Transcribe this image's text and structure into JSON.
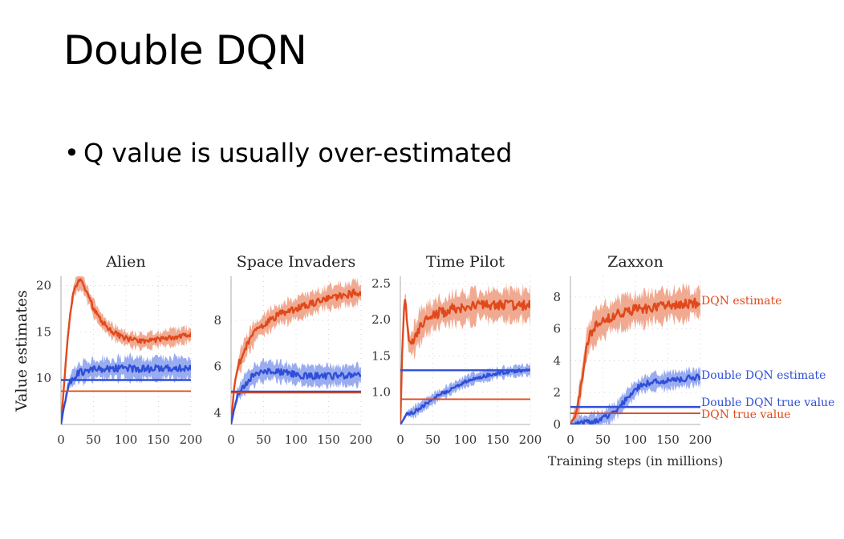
{
  "slide": {
    "title": "Double DQN",
    "bullet": "Q value is usually over-estimated",
    "bullet_symbol": "•"
  },
  "figure": {
    "ylabel": "Value estimates",
    "xlabel": "Training steps (in millions)",
    "x_ticks": [
      "0",
      "50",
      "100",
      "150",
      "200"
    ],
    "legend": {
      "dqn_estimate": "DQN estimate",
      "double_dqn_estimate": "Double DQN estimate",
      "double_dqn_true_value": "Double DQN true value",
      "dqn_true_value": "DQN true value"
    }
  },
  "colors": {
    "dqn": "#e0491b",
    "dqn_band": "#f0a58c",
    "double_dqn": "#2f4fd8",
    "double_dqn_band": "#8fa3ee",
    "grid_dot": "#cccccc"
  },
  "chart_data": [
    {
      "type": "line",
      "title": "Alien",
      "xlim": [
        0,
        200
      ],
      "ylim": [
        5,
        21
      ],
      "y_ticks": [
        10,
        15,
        20
      ],
      "y_tick_labels": [
        "10",
        "15",
        "20"
      ],
      "series": [
        {
          "name": "DQN estimate",
          "x": [
            0,
            5,
            10,
            15,
            20,
            25,
            30,
            35,
            40,
            50,
            60,
            70,
            80,
            90,
            100,
            110,
            120,
            130,
            140,
            150,
            160,
            170,
            180,
            190,
            200
          ],
          "values": [
            5,
            9.5,
            14,
            17.5,
            19.5,
            20.3,
            20.6,
            20,
            19.2,
            17.6,
            16.4,
            15.6,
            15,
            14.6,
            14.3,
            14.1,
            14,
            14,
            14.1,
            14.2,
            14.3,
            14.4,
            14.5,
            14.6,
            14.7
          ],
          "band": 0.8
        },
        {
          "name": "Double DQN estimate",
          "x": [
            0,
            5,
            10,
            15,
            20,
            25,
            30,
            40,
            50,
            60,
            80,
            100,
            120,
            140,
            160,
            180,
            200
          ],
          "values": [
            5,
            7,
            8.8,
            9.8,
            10.2,
            10.5,
            10.6,
            10.8,
            10.9,
            11,
            11,
            11.1,
            11,
            11,
            11.1,
            11.1,
            11
          ],
          "band": 1.1
        },
        {
          "name": "Double DQN true value",
          "x": [
            0,
            200
          ],
          "values": [
            9.8,
            9.8
          ]
        },
        {
          "name": "DQN true value",
          "x": [
            0,
            200
          ],
          "values": [
            8.6,
            8.6
          ]
        }
      ]
    },
    {
      "type": "line",
      "title": "Space Invaders",
      "xlim": [
        0,
        200
      ],
      "ylim": [
        3.5,
        9.9
      ],
      "y_ticks": [
        4,
        6,
        8
      ],
      "y_tick_labels": [
        "4",
        "6",
        "8"
      ],
      "series": [
        {
          "name": "DQN estimate",
          "x": [
            0,
            5,
            10,
            15,
            20,
            30,
            40,
            50,
            60,
            70,
            80,
            90,
            100,
            110,
            120,
            130,
            140,
            150,
            160,
            170,
            180,
            190,
            200
          ],
          "values": [
            3.5,
            5.2,
            6,
            6.3,
            6.7,
            7.2,
            7.6,
            7.8,
            8,
            8.2,
            8.3,
            8.4,
            8.5,
            8.6,
            8.7,
            8.8,
            8.9,
            9,
            9,
            9.1,
            9.1,
            9.2,
            9.2
          ],
          "band": 0.45
        },
        {
          "name": "Double DQN estimate",
          "x": [
            0,
            5,
            10,
            15,
            20,
            30,
            40,
            50,
            60,
            70,
            80,
            90,
            100,
            120,
            140,
            160,
            180,
            200
          ],
          "values": [
            3.5,
            4.2,
            4.8,
            5,
            5.2,
            5.5,
            5.7,
            5.8,
            5.85,
            5.8,
            5.75,
            5.7,
            5.65,
            5.6,
            5.6,
            5.6,
            5.6,
            5.65
          ],
          "band": 0.4
        },
        {
          "name": "Double DQN true value",
          "x": [
            0,
            200
          ],
          "values": [
            4.92,
            4.92
          ]
        },
        {
          "name": "DQN true value",
          "x": [
            0,
            200
          ],
          "values": [
            4.87,
            4.87
          ]
        }
      ]
    },
    {
      "type": "line",
      "title": "Time Pilot",
      "xlim": [
        0,
        200
      ],
      "ylim": [
        0.55,
        2.6
      ],
      "y_ticks": [
        1.0,
        1.5,
        2.0,
        2.5
      ],
      "y_tick_labels": [
        "1.0",
        "1.5",
        "2.0",
        "2.5"
      ],
      "series": [
        {
          "name": "DQN estimate",
          "x": [
            0,
            3,
            6,
            8,
            10,
            12,
            15,
            20,
            30,
            40,
            50,
            60,
            70,
            80,
            90,
            100,
            120,
            140,
            160,
            180,
            200
          ],
          "values": [
            0.55,
            1.6,
            2.2,
            2.3,
            2.0,
            1.75,
            1.65,
            1.7,
            1.9,
            2.0,
            2.05,
            2.1,
            2.1,
            2.15,
            2.15,
            2.15,
            2.2,
            2.2,
            2.2,
            2.2,
            2.2
          ],
          "band": 0.2
        },
        {
          "name": "Double DQN estimate",
          "x": [
            0,
            5,
            10,
            20,
            30,
            40,
            50,
            60,
            70,
            80,
            90,
            100,
            110,
            120,
            130,
            140,
            150,
            160,
            170,
            180,
            190,
            200
          ],
          "values": [
            0.55,
            0.62,
            0.7,
            0.72,
            0.78,
            0.84,
            0.9,
            0.96,
            1.0,
            1.05,
            1.1,
            1.14,
            1.18,
            1.2,
            1.22,
            1.24,
            1.26,
            1.27,
            1.28,
            1.29,
            1.3,
            1.3
          ],
          "band": 0.07
        },
        {
          "name": "Double DQN true value",
          "x": [
            0,
            200
          ],
          "values": [
            1.3,
            1.3
          ]
        },
        {
          "name": "DQN true value",
          "x": [
            0,
            200
          ],
          "values": [
            0.9,
            0.9
          ]
        }
      ]
    },
    {
      "type": "line",
      "title": "Zaxxon",
      "xlim": [
        0,
        200
      ],
      "ylim": [
        0,
        9.3
      ],
      "y_ticks": [
        0,
        2,
        4,
        6,
        8
      ],
      "y_tick_labels": [
        "0",
        "2",
        "4",
        "6",
        "8"
      ],
      "series": [
        {
          "name": "DQN estimate",
          "x": [
            0,
            10,
            15,
            20,
            25,
            30,
            40,
            50,
            60,
            70,
            80,
            90,
            100,
            110,
            120,
            130,
            140,
            150,
            160,
            170,
            180,
            190,
            200
          ],
          "values": [
            0,
            0.8,
            2,
            3.5,
            5,
            5.6,
            6.2,
            6.5,
            6.7,
            6.9,
            7,
            7.1,
            7.2,
            7.2,
            7.3,
            7.4,
            7.4,
            7.5,
            7.5,
            7.5,
            7.6,
            7.6,
            7.7
          ],
          "band": 0.9
        },
        {
          "name": "Double DQN estimate",
          "x": [
            0,
            10,
            20,
            30,
            40,
            50,
            60,
            70,
            80,
            90,
            100,
            110,
            120,
            130,
            140,
            150,
            160,
            170,
            180,
            190,
            200
          ],
          "values": [
            0,
            0.05,
            0.1,
            0.15,
            0.25,
            0.4,
            0.6,
            0.9,
            1.3,
            1.8,
            2.2,
            2.5,
            2.6,
            2.7,
            2.7,
            2.75,
            2.8,
            2.85,
            2.9,
            2.95,
            3.0
          ],
          "band": 0.5
        },
        {
          "name": "Double DQN true value",
          "x": [
            0,
            200
          ],
          "values": [
            1.1,
            1.1
          ]
        },
        {
          "name": "DQN true value",
          "x": [
            0,
            200
          ],
          "values": [
            0.7,
            0.7
          ]
        }
      ]
    }
  ]
}
